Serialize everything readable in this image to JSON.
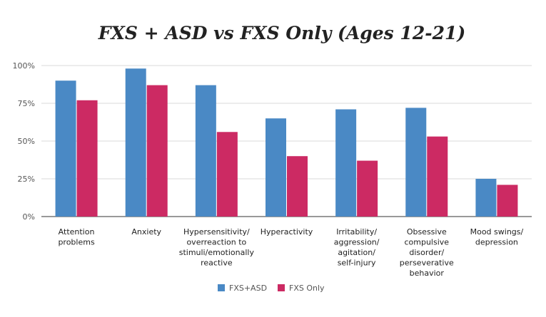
{
  "chart_data": {
    "type": "bar",
    "title": "FXS + ASD vs FXS Only (Ages 12-21)",
    "xlabel": "",
    "ylabel": "",
    "ylim": [
      0,
      100
    ],
    "y_ticks": [
      0,
      25,
      50,
      75,
      100
    ],
    "y_tick_labels": [
      "0%",
      "25%",
      "50%",
      "75%",
      "100%"
    ],
    "grid": true,
    "legend_position": "bottom",
    "categories": [
      [
        "Attention",
        "problems"
      ],
      [
        "Anxiety"
      ],
      [
        "Hypersensitivity/",
        "overreaction to",
        "stimuli/emotionally",
        "reactive"
      ],
      [
        "Hyperactivity"
      ],
      [
        "Irritability/",
        "aggression/",
        "agitation/",
        "self-injury"
      ],
      [
        "Obsessive",
        "compulsive",
        "disorder/",
        "perseverative",
        "behavior"
      ],
      [
        "Mood swings/",
        "depression"
      ]
    ],
    "series": [
      {
        "name": "FXS+ASD",
        "color": "#4a89c5",
        "values": [
          90,
          98,
          87,
          65,
          71,
          72,
          25
        ]
      },
      {
        "name": "FXS Only",
        "color": "#cc2a63",
        "values": [
          77,
          87,
          56,
          40,
          37,
          53,
          21
        ]
      }
    ]
  }
}
